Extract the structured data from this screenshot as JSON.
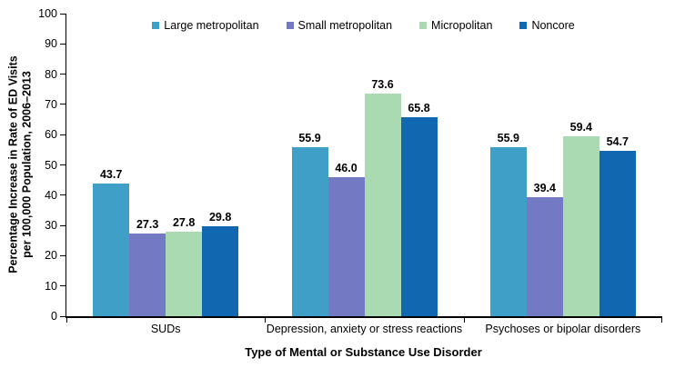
{
  "chart_data": {
    "type": "bar",
    "title": "",
    "categories": [
      "SUDs",
      "Depression, anxiety or stress reactions",
      "Psychoses or bipolar disorders"
    ],
    "series": [
      {
        "name": "Large metropolitan",
        "color": "#3F9FC6",
        "values": [
          43.7,
          55.9,
          55.9
        ]
      },
      {
        "name": "Small metropolitan",
        "color": "#7379C2",
        "values": [
          27.3,
          46.0,
          39.4
        ]
      },
      {
        "name": "Micropolitan",
        "color": "#AADAB2",
        "values": [
          27.8,
          73.6,
          59.4
        ]
      },
      {
        "name": "Noncore",
        "color": "#1168B0",
        "values": [
          29.8,
          65.8,
          54.7
        ]
      }
    ],
    "value_label_decimals": 1,
    "xlabel": "Type of Mental or Substance Use Disorder",
    "ylabel_line1": "Percentage Increase in Rate of ED Visits",
    "ylabel_line2": "per 100,000 Population, 2006–2013",
    "ylim": [
      0,
      100
    ],
    "ytick_step": 10,
    "grid": false,
    "legend_position": "top",
    "axis_color": "#000000",
    "background_color": "#ffffff"
  }
}
